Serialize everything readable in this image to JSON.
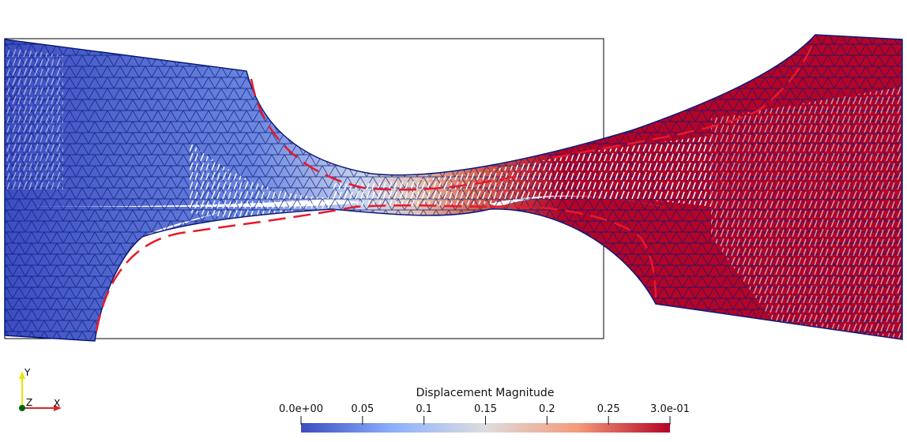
{
  "colorbar": {
    "title": "Displacement Magnitude",
    "tick_labels": [
      "0.0e+00",
      "0.05",
      "0.1",
      "0.15",
      "0.2",
      "0.25",
      "3.0e-01"
    ],
    "tick_values": [
      0.0,
      0.05,
      0.1,
      0.15,
      0.2,
      0.25,
      0.3
    ],
    "range": [
      0.0,
      0.3
    ],
    "colormap": [
      "#3b4cc0",
      "#8db0fe",
      "#dddddd",
      "#f49a7b",
      "#b40426"
    ]
  },
  "axes_triad": {
    "x_label": "X",
    "y_label": "Y",
    "z_label": "Z",
    "x_color": "#d62728",
    "y_color": "#e6e600",
    "z_color": "#006400"
  },
  "scene": {
    "mesh_edge_color": "#0a1a7a",
    "crack_color": "#ffffff",
    "reference_outline_color": "#000000",
    "interface_line_color": "#e8192c"
  }
}
